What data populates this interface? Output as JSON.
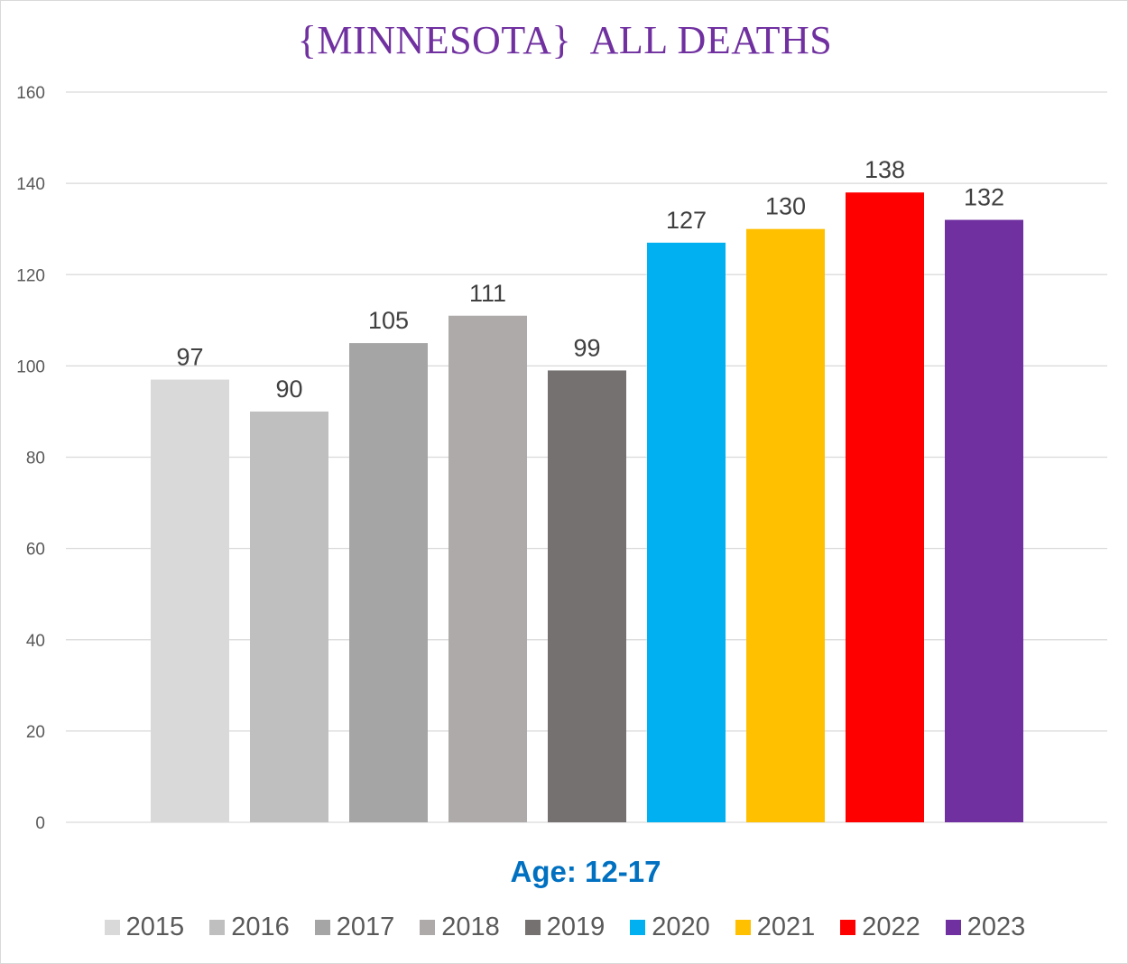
{
  "chart_data": {
    "type": "bar",
    "title": "{MINNESOTA}  ALL DEATHS",
    "xlabel": "Age: 12-17",
    "ylabel": "",
    "ylim": [
      0,
      160
    ],
    "y_ticks": [
      0,
      20,
      40,
      60,
      80,
      100,
      120,
      140,
      160
    ],
    "grid": true,
    "legend_position": "bottom",
    "categories": [
      "Age: 12-17"
    ],
    "series": [
      {
        "name": "2015",
        "values": [
          97
        ],
        "color": "#d9d9d9"
      },
      {
        "name": "2016",
        "values": [
          90
        ],
        "color": "#bfbfbf"
      },
      {
        "name": "2017",
        "values": [
          105
        ],
        "color": "#a5a5a5"
      },
      {
        "name": "2018",
        "values": [
          111
        ],
        "color": "#aeaaaa"
      },
      {
        "name": "2019",
        "values": [
          99
        ],
        "color": "#767171"
      },
      {
        "name": "2020",
        "values": [
          127
        ],
        "color": "#00b0f0"
      },
      {
        "name": "2021",
        "values": [
          130
        ],
        "color": "#ffc000"
      },
      {
        "name": "2022",
        "values": [
          138
        ],
        "color": "#ff0000"
      },
      {
        "name": "2023",
        "values": [
          132
        ],
        "color": "#7030a0"
      }
    ]
  },
  "colors": {
    "title": "#7030a0",
    "xlabel": "#0070c0",
    "tick_text": "#595959",
    "data_label": "#404040",
    "gridline": "#d9d9d9"
  }
}
